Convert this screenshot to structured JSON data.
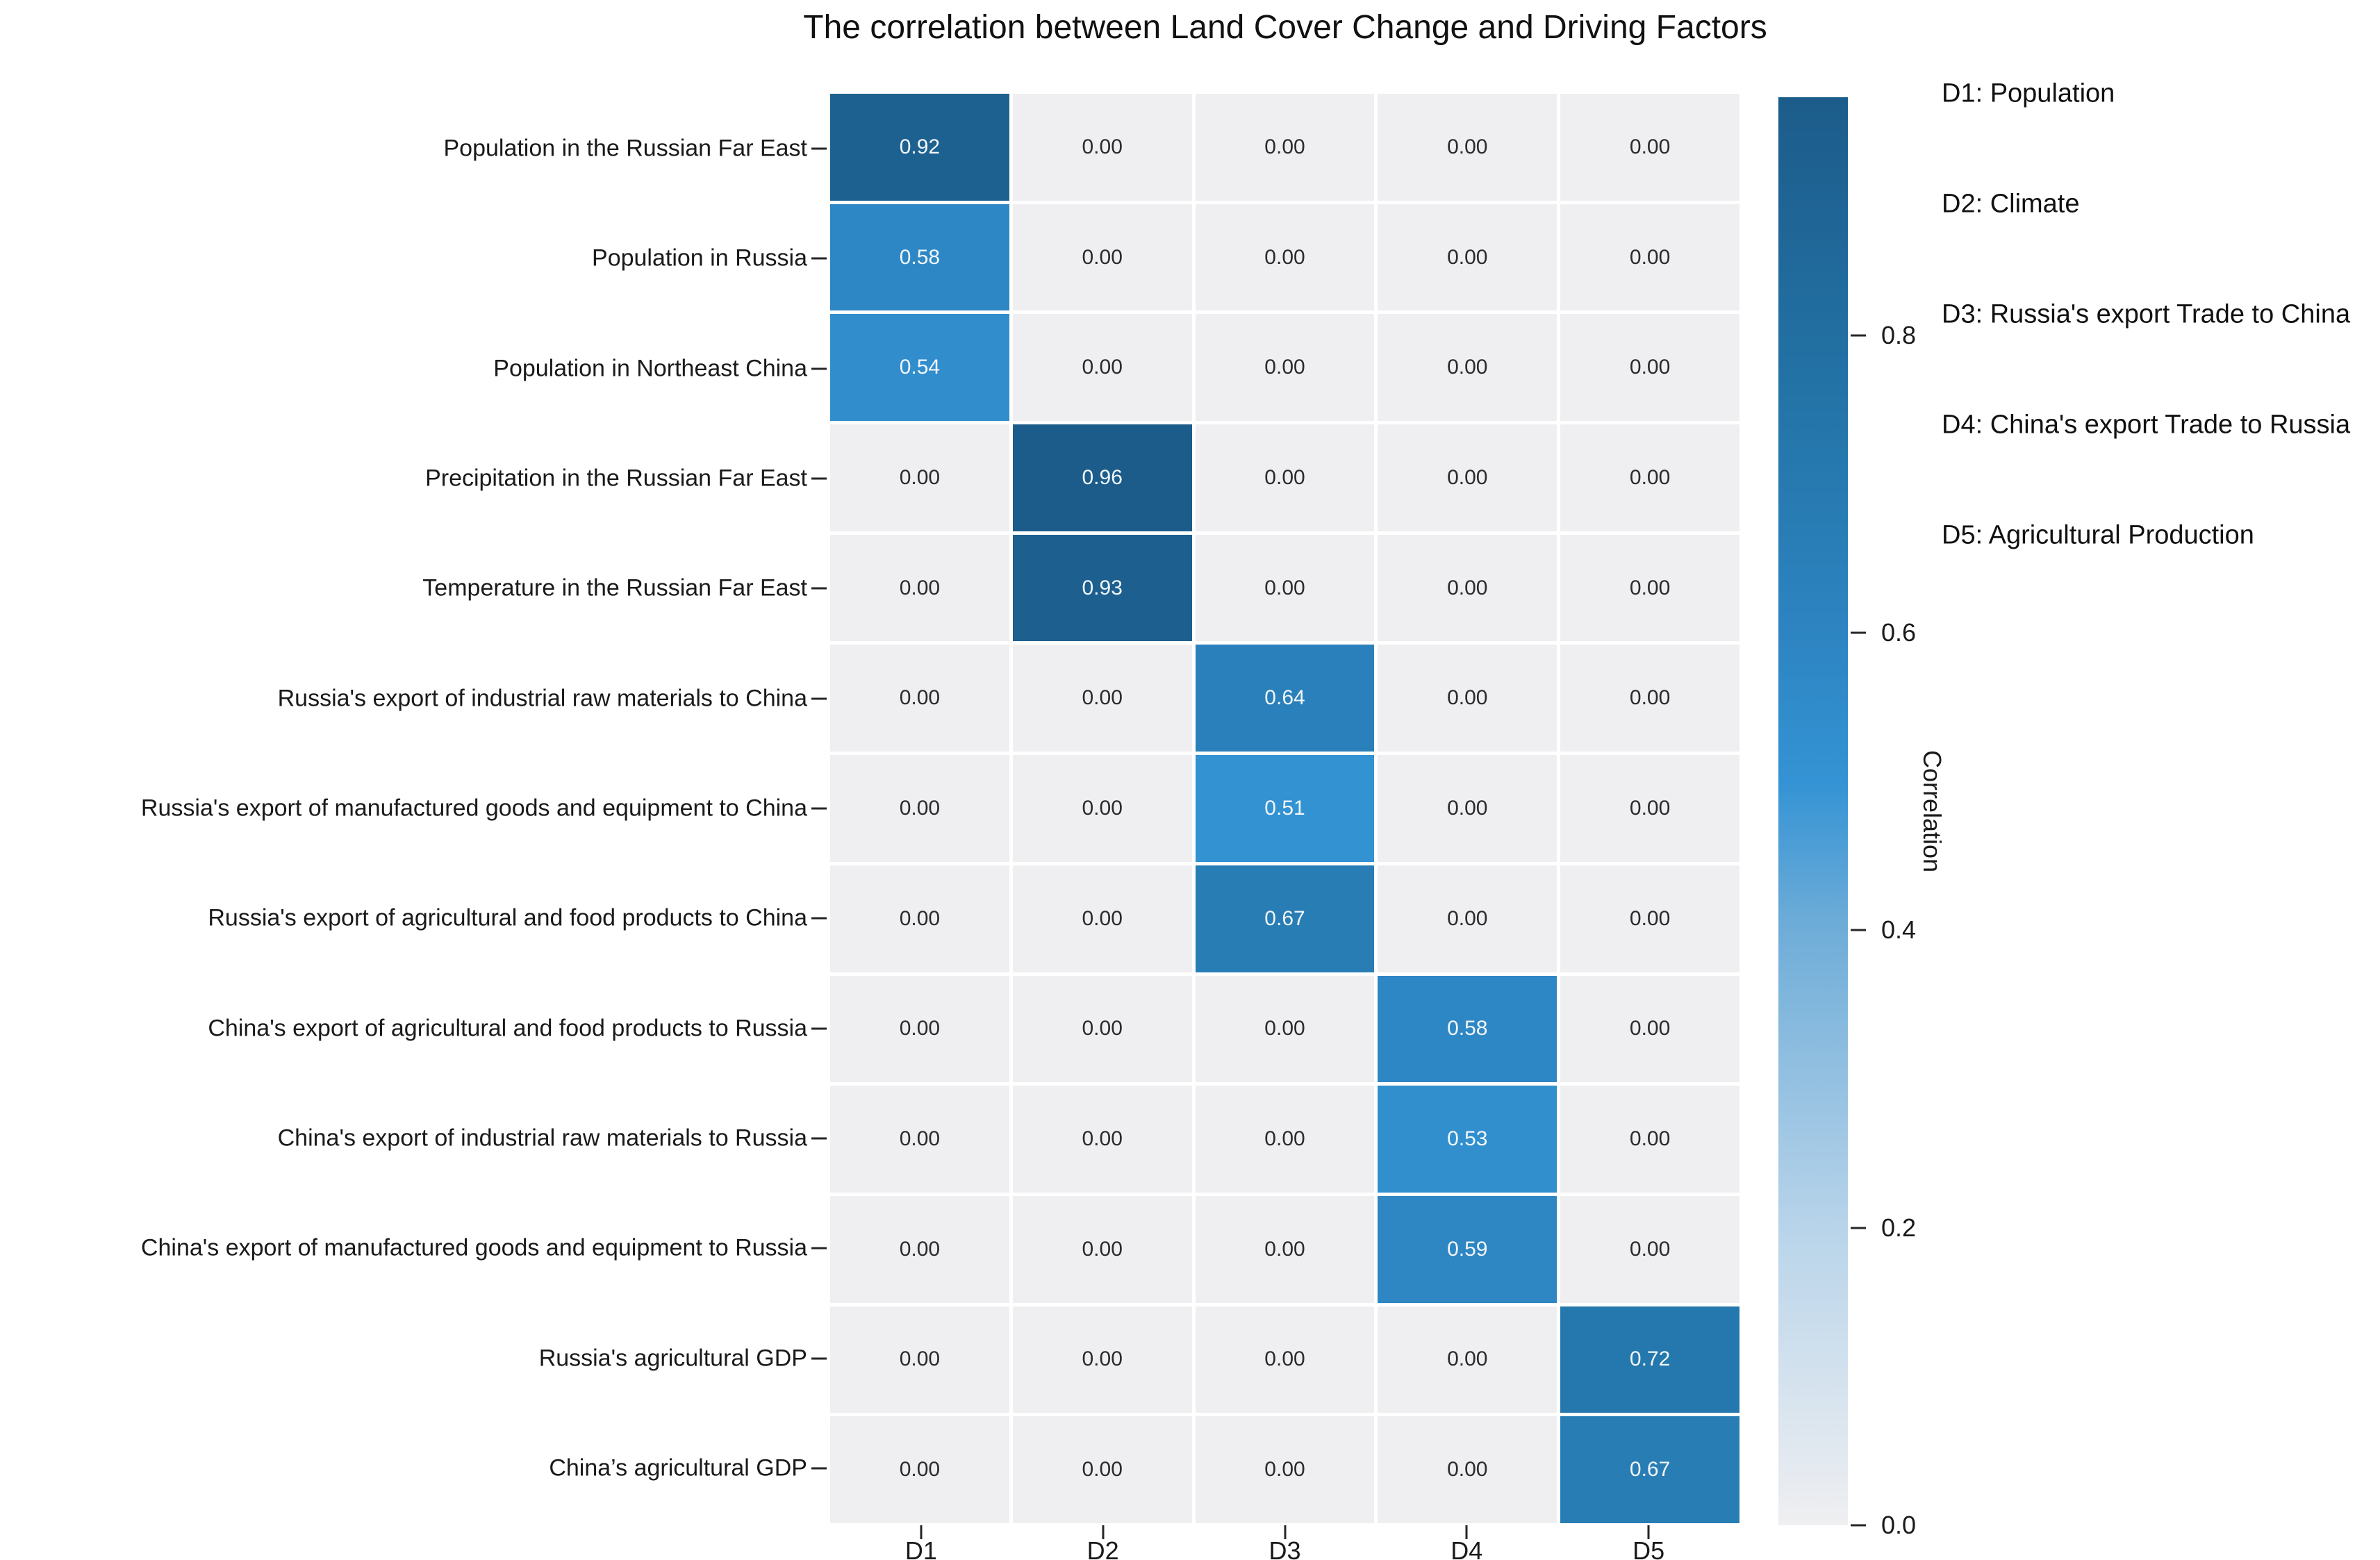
{
  "title": "The correlation between Land Cover Change and Driving Factors",
  "colors": {
    "background": "#ffffff",
    "cell_zero": "#efeff1",
    "accent_dark": "#1c5c8a",
    "cell_text_light": "#f2f6f9",
    "cell_text_dark": "#2b2b2b",
    "tick_color": "#262626",
    "label_color": "#1a1a1a"
  },
  "chart_data": {
    "type": "heatmap",
    "title": "The correlation between Land Cover Change and Driving Factors",
    "columns": [
      "D1",
      "D2",
      "D3",
      "D4",
      "D5"
    ],
    "rows": [
      "Population in the Russian Far East",
      "Population in Russia",
      "Population in Northeast China",
      "Precipitation in the Russian Far East",
      "Temperature in the Russian Far East",
      "Russia's export of industrial raw materials to China",
      "Russia's export of manufactured goods and equipment to China",
      "Russia's export of agricultural and food products to China",
      "China's export of agricultural and food products to Russia",
      "China's export of industrial raw materials to Russia",
      "China's export of manufactured goods and equipment to Russia",
      "Russia's agricultural GDP",
      "China’s agricultural GDP"
    ],
    "matrix": [
      [
        0.92,
        0.0,
        0.0,
        0.0,
        0.0
      ],
      [
        0.58,
        0.0,
        0.0,
        0.0,
        0.0
      ],
      [
        0.54,
        0.0,
        0.0,
        0.0,
        0.0
      ],
      [
        0.0,
        0.96,
        0.0,
        0.0,
        0.0
      ],
      [
        0.0,
        0.93,
        0.0,
        0.0,
        0.0
      ],
      [
        0.0,
        0.0,
        0.64,
        0.0,
        0.0
      ],
      [
        0.0,
        0.0,
        0.51,
        0.0,
        0.0
      ],
      [
        0.0,
        0.0,
        0.67,
        0.0,
        0.0
      ],
      [
        0.0,
        0.0,
        0.0,
        0.58,
        0.0
      ],
      [
        0.0,
        0.0,
        0.0,
        0.53,
        0.0
      ],
      [
        0.0,
        0.0,
        0.0,
        0.59,
        0.0
      ],
      [
        0.0,
        0.0,
        0.0,
        0.0,
        0.72
      ],
      [
        0.0,
        0.0,
        0.0,
        0.0,
        0.67
      ]
    ],
    "value_decimals": 2,
    "grid": false,
    "colorbar": {
      "label": "Correlation",
      "ticks": [
        0.0,
        0.2,
        0.4,
        0.6,
        0.8
      ],
      "vmin": 0.0,
      "vmax": 0.96
    },
    "colormap_stops": [
      {
        "v": 0.0,
        "c": "#efeff1"
      },
      {
        "v": 0.2,
        "c": "#b8d4ea"
      },
      {
        "v": 0.4,
        "c": "#6fadd8"
      },
      {
        "v": 0.5,
        "c": "#3493d4"
      },
      {
        "v": 0.6,
        "c": "#2d84c1"
      },
      {
        "v": 0.72,
        "c": "#2578ad"
      },
      {
        "v": 0.96,
        "c": "#1c5c8a"
      }
    ],
    "legend_position": "right",
    "legend": [
      "D1: Population",
      "D2: Climate",
      "D3: Russia's export Trade to China",
      "D4: China's export Trade to Russia",
      "D5: Agricultural Production"
    ]
  }
}
